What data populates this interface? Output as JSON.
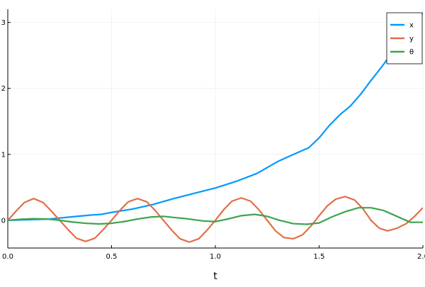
{
  "chart_data": {
    "type": "line",
    "title": "",
    "xlabel": "t",
    "ylabel": "",
    "xlim": [
      0.0,
      2.0
    ],
    "ylim": [
      -0.42,
      3.2
    ],
    "xticks": [
      0.0,
      0.5,
      1.0,
      1.5,
      2.0
    ],
    "xtick_labels": [
      "0.0",
      "0.5",
      "1.0",
      "1.5",
      "2.0"
    ],
    "yticks": [
      0,
      1,
      2,
      3
    ],
    "ytick_labels": [
      "0",
      "1",
      "2",
      "3"
    ],
    "grid": true,
    "legend_position": "top-right",
    "series": [
      {
        "name": "x",
        "color": "#009AFA",
        "points": [
          [
            0.0,
            0.0
          ],
          [
            0.1,
            0.01
          ],
          [
            0.2,
            0.02
          ],
          [
            0.3,
            0.05
          ],
          [
            0.4,
            0.08
          ],
          [
            0.45,
            0.09
          ],
          [
            0.5,
            0.12
          ],
          [
            0.6,
            0.17
          ],
          [
            0.7,
            0.24
          ],
          [
            0.8,
            0.33
          ],
          [
            0.9,
            0.41
          ],
          [
            1.0,
            0.49
          ],
          [
            1.1,
            0.59
          ],
          [
            1.2,
            0.71
          ],
          [
            1.3,
            0.89
          ],
          [
            1.37,
            0.99
          ],
          [
            1.45,
            1.1
          ],
          [
            1.5,
            1.25
          ],
          [
            1.55,
            1.44
          ],
          [
            1.6,
            1.6
          ],
          [
            1.65,
            1.73
          ],
          [
            1.7,
            1.91
          ],
          [
            1.75,
            2.12
          ],
          [
            1.8,
            2.32
          ],
          [
            1.85,
            2.53
          ],
          [
            1.9,
            2.75
          ],
          [
            1.95,
            2.96
          ],
          [
            2.0,
            3.14
          ]
        ]
      },
      {
        "name": "y",
        "color": "#E36F47",
        "points": [
          [
            0.0,
            0.0
          ],
          [
            0.04,
            0.14
          ],
          [
            0.08,
            0.27
          ],
          [
            0.125,
            0.33
          ],
          [
            0.17,
            0.27
          ],
          [
            0.21,
            0.14
          ],
          [
            0.25,
            0.0
          ],
          [
            0.29,
            -0.14
          ],
          [
            0.33,
            -0.27
          ],
          [
            0.375,
            -0.32
          ],
          [
            0.42,
            -0.27
          ],
          [
            0.46,
            -0.14
          ],
          [
            0.5,
            0.0
          ],
          [
            0.54,
            0.15
          ],
          [
            0.58,
            0.28
          ],
          [
            0.625,
            0.33
          ],
          [
            0.67,
            0.28
          ],
          [
            0.71,
            0.15
          ],
          [
            0.75,
            0.0
          ],
          [
            0.79,
            -0.15
          ],
          [
            0.83,
            -0.28
          ],
          [
            0.875,
            -0.33
          ],
          [
            0.92,
            -0.28
          ],
          [
            0.96,
            -0.15
          ],
          [
            1.0,
            0.0
          ],
          [
            1.04,
            0.16
          ],
          [
            1.08,
            0.29
          ],
          [
            1.125,
            0.34
          ],
          [
            1.17,
            0.29
          ],
          [
            1.21,
            0.16
          ],
          [
            1.25,
            0.0
          ],
          [
            1.29,
            -0.16
          ],
          [
            1.33,
            -0.26
          ],
          [
            1.375,
            -0.28
          ],
          [
            1.42,
            -0.22
          ],
          [
            1.46,
            -0.09
          ],
          [
            1.5,
            0.07
          ],
          [
            1.54,
            0.22
          ],
          [
            1.58,
            0.32
          ],
          [
            1.625,
            0.36
          ],
          [
            1.67,
            0.31
          ],
          [
            1.71,
            0.18
          ],
          [
            1.75,
            0.0
          ],
          [
            1.79,
            -0.12
          ],
          [
            1.83,
            -0.16
          ],
          [
            1.875,
            -0.12
          ],
          [
            1.92,
            -0.05
          ],
          [
            1.96,
            0.06
          ],
          [
            2.0,
            0.19
          ]
        ]
      },
      {
        "name": "θ",
        "color": "#3DA44E",
        "points": [
          [
            0.0,
            0.0
          ],
          [
            0.06,
            0.015
          ],
          [
            0.125,
            0.025
          ],
          [
            0.19,
            0.02
          ],
          [
            0.25,
            0.0
          ],
          [
            0.31,
            -0.025
          ],
          [
            0.375,
            -0.045
          ],
          [
            0.44,
            -0.055
          ],
          [
            0.5,
            -0.045
          ],
          [
            0.56,
            -0.02
          ],
          [
            0.625,
            0.02
          ],
          [
            0.69,
            0.05
          ],
          [
            0.75,
            0.06
          ],
          [
            0.81,
            0.04
          ],
          [
            0.875,
            0.02
          ],
          [
            0.94,
            -0.01
          ],
          [
            1.0,
            -0.02
          ],
          [
            1.06,
            0.02
          ],
          [
            1.125,
            0.07
          ],
          [
            1.19,
            0.09
          ],
          [
            1.25,
            0.06
          ],
          [
            1.31,
            0.0
          ],
          [
            1.375,
            -0.05
          ],
          [
            1.44,
            -0.06
          ],
          [
            1.5,
            -0.04
          ],
          [
            1.56,
            0.05
          ],
          [
            1.625,
            0.13
          ],
          [
            1.69,
            0.19
          ],
          [
            1.75,
            0.19
          ],
          [
            1.81,
            0.15
          ],
          [
            1.875,
            0.06
          ],
          [
            1.94,
            -0.03
          ],
          [
            2.0,
            -0.03
          ]
        ]
      }
    ]
  }
}
